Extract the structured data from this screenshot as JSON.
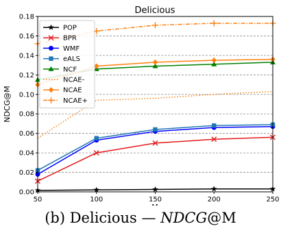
{
  "caption": {
    "prefix": "(b) Delicious —",
    "metric": "NDCG",
    "suffix": "@M"
  },
  "chart_data": {
    "type": "line",
    "title": "Delicious",
    "xlabel": "M",
    "ylabel": "NDCG@M",
    "x": [
      50,
      100,
      150,
      200,
      250
    ],
    "xlim": [
      50,
      250
    ],
    "ylim": [
      0.0,
      0.18
    ],
    "xticks": [
      "50",
      "100",
      "150",
      "200",
      "250"
    ],
    "yticks": [
      "0.00",
      "0.02",
      "0.04",
      "0.06",
      "0.08",
      "0.10",
      "0.12",
      "0.14",
      "0.16",
      "0.18"
    ],
    "grid": "horizontal dashed",
    "legend_position": "top-left",
    "series": [
      {
        "name": "POP",
        "color": "#000000",
        "marker": "star",
        "linestyle": "solid",
        "values": [
          0.0015,
          0.002,
          0.0025,
          0.003,
          0.003
        ]
      },
      {
        "name": "BPR",
        "color": "#e41a1c",
        "marker": "x",
        "linestyle": "solid",
        "values": [
          0.011,
          0.04,
          0.05,
          0.054,
          0.056
        ]
      },
      {
        "name": "WMF",
        "color": "#0000ff",
        "marker": "circle",
        "linestyle": "solid",
        "values": [
          0.018,
          0.053,
          0.062,
          0.066,
          0.067
        ]
      },
      {
        "name": "eALS",
        "color": "#1f77b4",
        "marker": "square",
        "linestyle": "solid",
        "values": [
          0.022,
          0.055,
          0.064,
          0.068,
          0.069
        ]
      },
      {
        "name": "NCF",
        "color": "#008000",
        "marker": "triangle",
        "linestyle": "solid",
        "values": [
          0.115,
          0.126,
          0.129,
          0.131,
          0.133
        ]
      },
      {
        "name": "NCAE-",
        "color": "#ff7f0e",
        "marker": "none",
        "linestyle": "dotted",
        "values": [
          0.055,
          0.094,
          0.096,
          0.1,
          0.103
        ]
      },
      {
        "name": "NCAE",
        "color": "#ff7f0e",
        "marker": "diamond",
        "linestyle": "solid",
        "values": [
          0.11,
          0.129,
          0.133,
          0.135,
          0.136
        ]
      },
      {
        "name": "NCAE+",
        "color": "#ff7f0e",
        "marker": "plus",
        "linestyle": "dashdot",
        "values": [
          0.152,
          0.165,
          0.171,
          0.173,
          0.173
        ]
      }
    ]
  }
}
